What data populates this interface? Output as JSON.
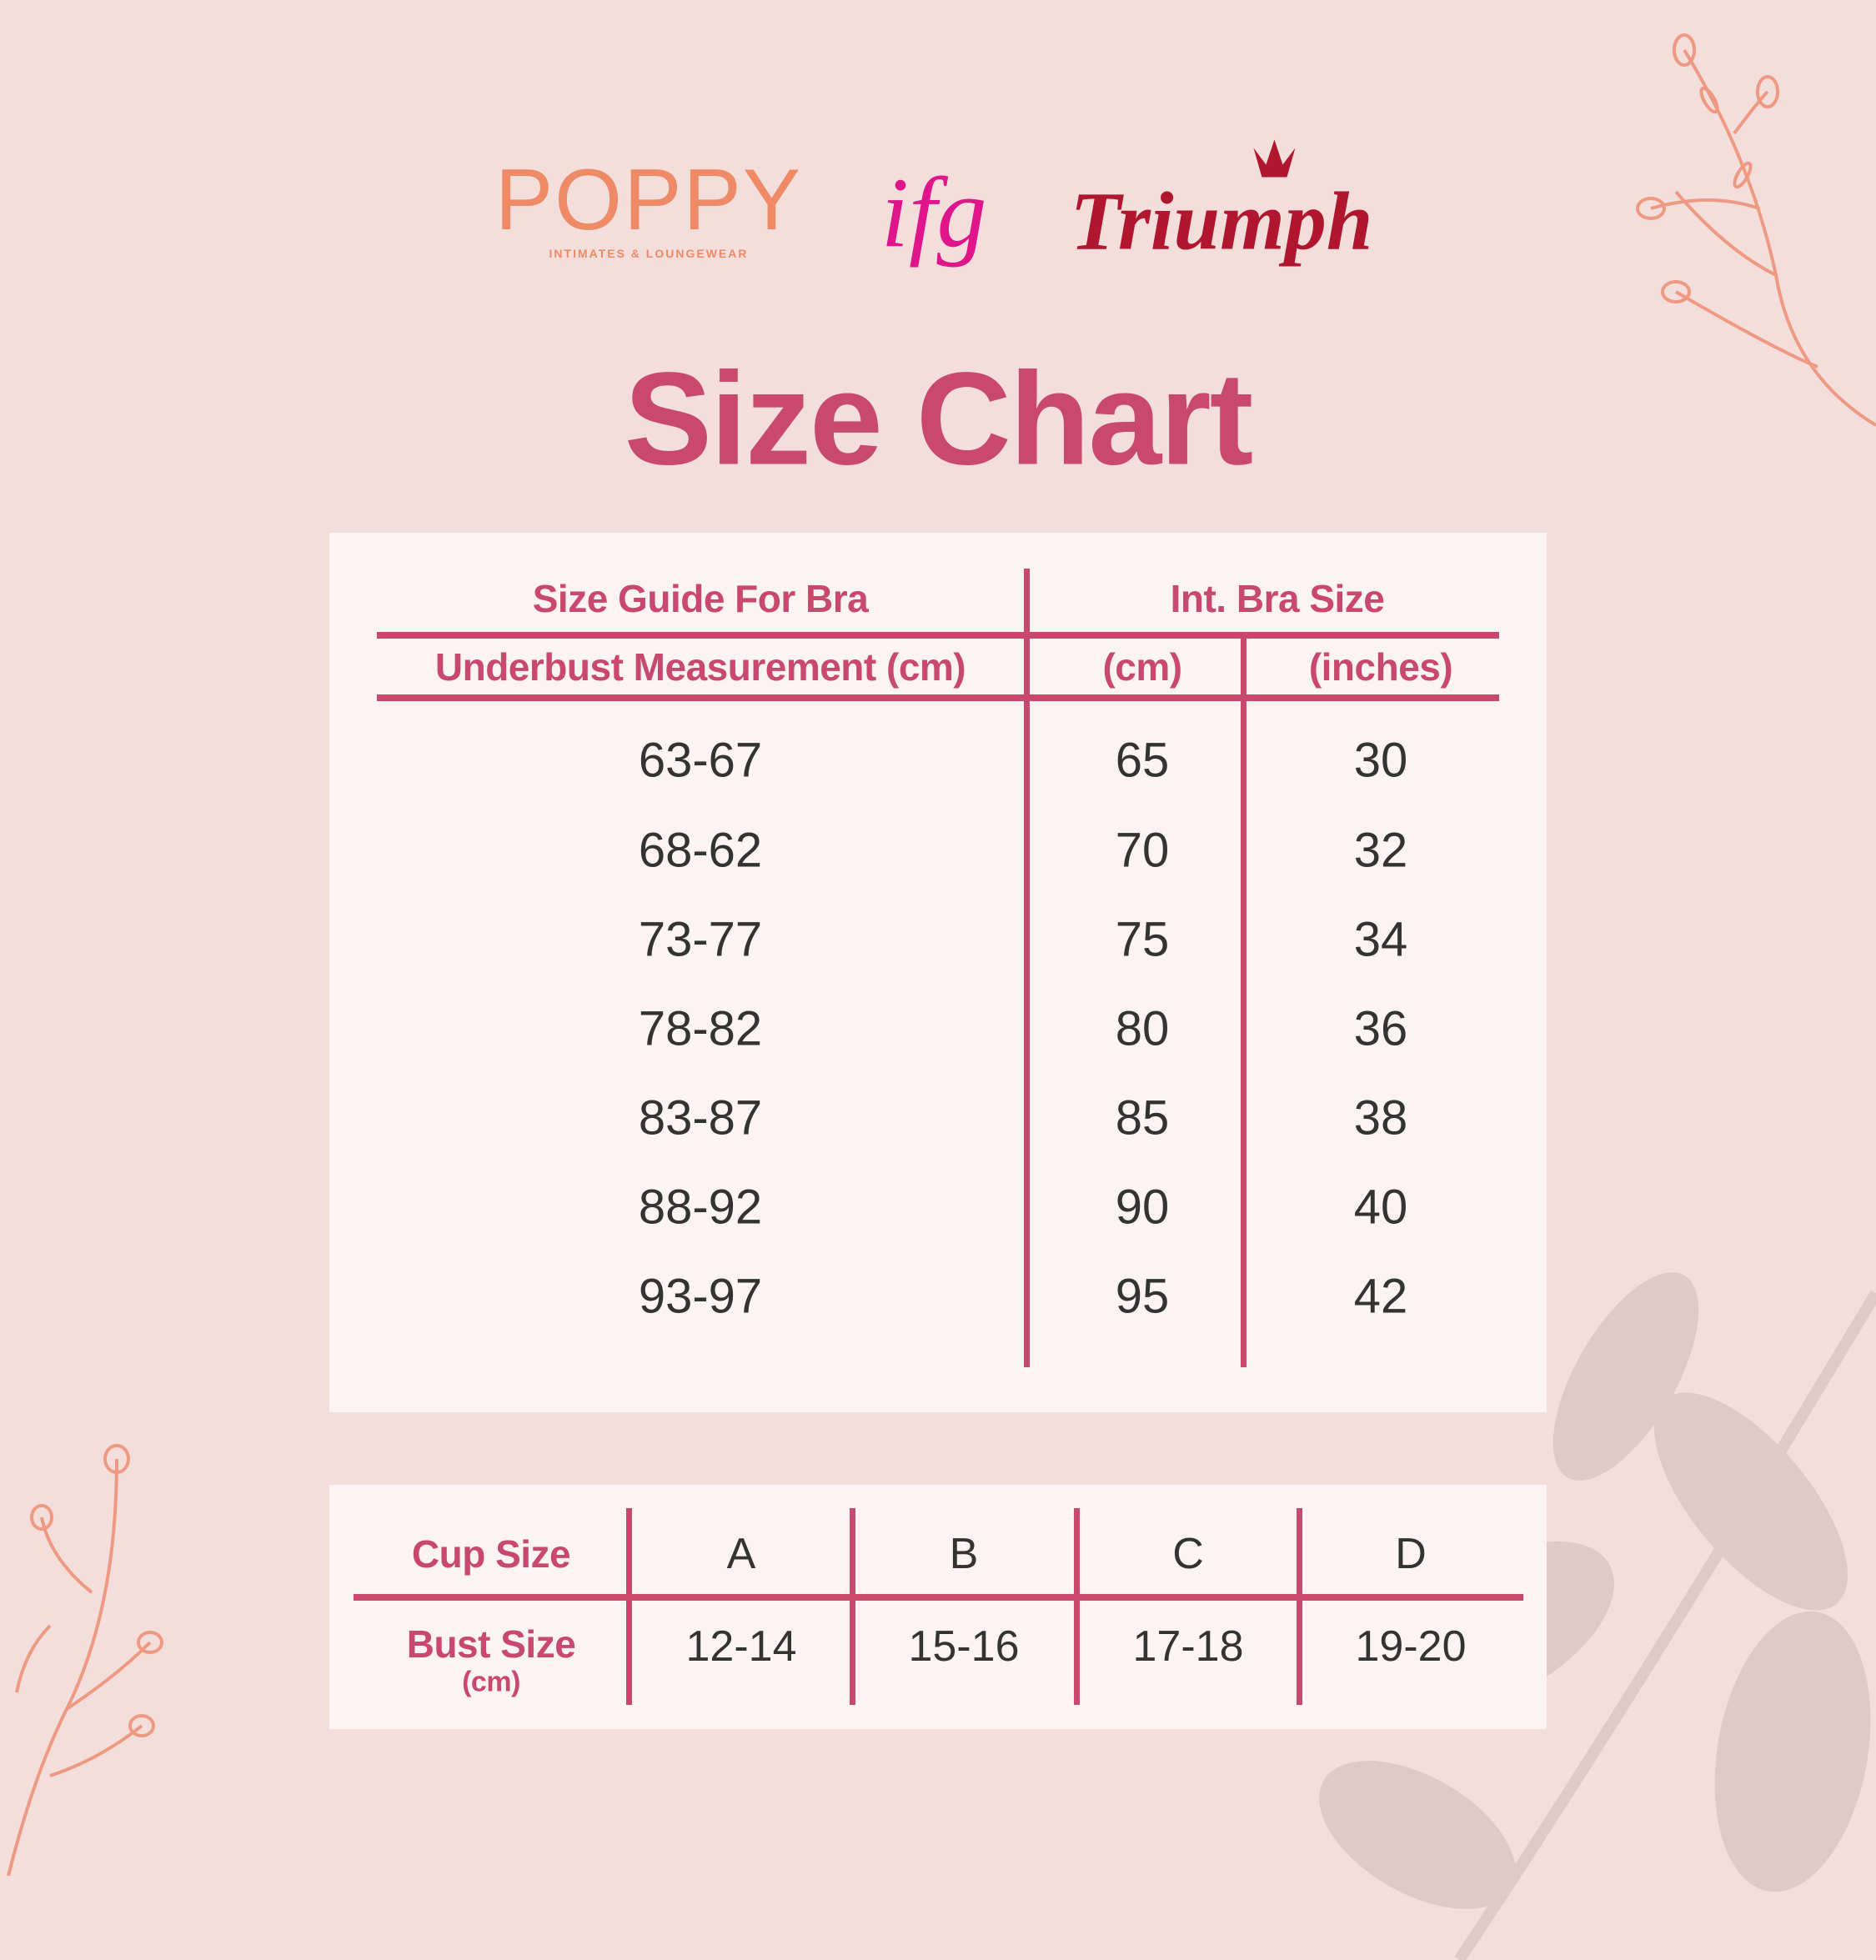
{
  "logos": {
    "poppy": {
      "name": "POPPY",
      "tagline": "INTIMATES & LOUNGEWEAR"
    },
    "ifg": {
      "name": "ifg"
    },
    "triumph": {
      "name": "Triumph"
    }
  },
  "title": "Size Chart",
  "bra_table": {
    "header_left": "Size Guide For Bra",
    "header_right": "Int. Bra Size",
    "subheaders": [
      "Underbust Measurement (cm)",
      "(cm)",
      "(inches)"
    ],
    "rows": [
      [
        "63-67",
        "65",
        "30"
      ],
      [
        "68-62",
        "70",
        "32"
      ],
      [
        "73-77",
        "75",
        "34"
      ],
      [
        "78-82",
        "80",
        "36"
      ],
      [
        "83-87",
        "85",
        "38"
      ],
      [
        "88-92",
        "90",
        "40"
      ],
      [
        "93-97",
        "95",
        "42"
      ]
    ]
  },
  "cup_table": {
    "cup_label": "Cup Size",
    "bust_label": "Bust Size",
    "bust_unit": "(cm)",
    "cups": [
      "A",
      "B",
      "C",
      "D"
    ],
    "bust": [
      "12-14",
      "15-16",
      "17-18",
      "19-20"
    ]
  },
  "colors": {
    "accent": "#c9486e",
    "background": "#f3dedb",
    "panel": "#fcf4f2",
    "text": "#333333",
    "floral": "#ee9a83"
  }
}
